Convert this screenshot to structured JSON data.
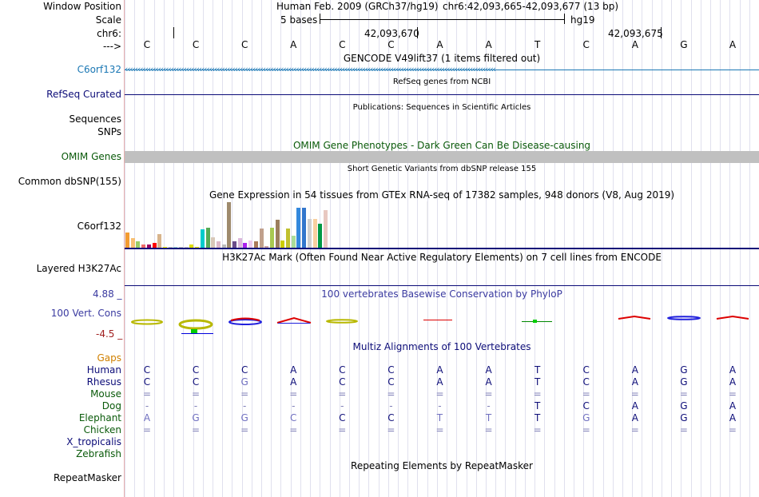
{
  "header": {
    "window_position_label": "Window Position",
    "assembly": "Human Feb. 2009 (GRCh37/hg19)",
    "position": "chr6:42,093,665-42,093,677 (13 bp)",
    "scale_label": "Scale",
    "scale_text": "5 bases",
    "scale_db": "hg19",
    "chrom_label": "chr6:",
    "coord1": "42,093,670",
    "coord2": "42,093,675",
    "strand_label": "--->"
  },
  "bases": [
    "C",
    "C",
    "C",
    "A",
    "C",
    "C",
    "A",
    "A",
    "T",
    "C",
    "A",
    "G",
    "A"
  ],
  "tracks": {
    "gencode_title": "GENCODE V49lift37 (1 items filtered out)",
    "gencode_label": "C6orf132",
    "refseq_title": "RefSeq genes from NCBI",
    "refseq_label": "RefSeq Curated",
    "pubs_title": "Publications: Sequences in Scientific Articles",
    "sequences_label": "Sequences",
    "snps_label": "SNPs",
    "omim_title": "OMIM Gene Phenotypes - Dark Green Can Be Disease-causing",
    "omim_label": "OMIM Genes",
    "dbsnp_title": "Short Genetic Variants from dbSNP release 155",
    "dbsnp_label": "Common dbSNP(155)",
    "gtex_title": "Gene Expression in 54 tissues from GTEx RNA-seq of 17382 samples, 948 donors (V8, Aug 2019)",
    "gtex_label": "C6orf132",
    "h3k27ac_title": "H3K27Ac Mark (Often Found Near Active Regulatory Elements) on 7 cell lines from ENCODE",
    "h3k27ac_label": "Layered H3K27Ac",
    "phylop_title": "100 vertebrates Basewise Conservation by PhyloP",
    "phylop_label": "100 Vert. Cons",
    "phylop_max": "4.88 _",
    "phylop_min": "-4.5 _",
    "multiz_title": "Multiz Alignments of 100 Vertebrates",
    "gaps_label": "Gaps",
    "repeat_title": "Repeating Elements by RepeatMasker",
    "repeat_label": "RepeatMasker"
  },
  "colors": {
    "gencode": "#1a77b4",
    "refseq": "#0c0c78",
    "omim": "#0a5a0a",
    "phylop": "#3a3aa0",
    "phylop_min": "#a02020",
    "gaps": "#d08000",
    "multiz_title": "#0c0c78"
  },
  "gtex_expression": [
    {
      "color": "#f39b31",
      "value": 19
    },
    {
      "color": "#f7bf73",
      "value": 12
    },
    {
      "color": "#99cc66",
      "value": 8
    },
    {
      "color": "#ee6a6a",
      "value": 4
    },
    {
      "color": "#990066",
      "value": 4
    },
    {
      "color": "#ff0000",
      "value": 6
    },
    {
      "color": "#d8b48c",
      "value": 17
    },
    {
      "color": "#ffff00",
      "value": 1
    },
    {
      "color": "#c8c8c8",
      "value": 1
    },
    {
      "color": "#9ad9d9",
      "value": 1
    },
    {
      "color": "#c0c0c0",
      "value": 1
    },
    {
      "color": "#cccccc",
      "value": 1
    },
    {
      "color": "#dddd00",
      "value": 4
    },
    {
      "color": "#f0f000",
      "value": 1
    },
    {
      "color": "#00cccc",
      "value": 23
    },
    {
      "color": "#55aa55",
      "value": 25
    },
    {
      "color": "#d8c8b8",
      "value": 13
    },
    {
      "color": "#dcb8c8",
      "value": 8
    },
    {
      "color": "#bbbbbb",
      "value": 4
    },
    {
      "color": "#9e8a6d",
      "value": 58
    },
    {
      "color": "#6a4c8a",
      "value": 8
    },
    {
      "color": "#dcb8dc",
      "value": 12
    },
    {
      "color": "#aa22ee",
      "value": 6
    },
    {
      "color": "#eecaee",
      "value": 9
    },
    {
      "color": "#aa7a5a",
      "value": 8
    },
    {
      "color": "#c0a08c",
      "value": 24
    },
    {
      "color": "#c8a0a0",
      "value": 2
    },
    {
      "color": "#a8c850",
      "value": 25
    },
    {
      "color": "#9b7d5c",
      "value": 36
    },
    {
      "color": "#cccc00",
      "value": 9
    },
    {
      "color": "#c0c030",
      "value": 24
    },
    {
      "color": "#aadd99",
      "value": 15
    },
    {
      "color": "#3388dd",
      "value": 51
    },
    {
      "color": "#3377cc",
      "value": 51
    },
    {
      "color": "#d0d0d0",
      "value": 37
    },
    {
      "color": "#f8d0a0",
      "value": 37
    },
    {
      "color": "#009944",
      "value": 31
    },
    {
      "color": "#e8c8c0",
      "value": 48
    }
  ],
  "multiz": [
    {
      "species": "Human",
      "color": "#0c0c78",
      "cells": [
        "C",
        "C",
        "C",
        "A",
        "C",
        "C",
        "A",
        "A",
        "T",
        "C",
        "A",
        "G",
        "A"
      ]
    },
    {
      "species": "Rhesus",
      "color": "#0c0c78",
      "cells": [
        "C",
        "C",
        "G",
        "A",
        "C",
        "C",
        "A",
        "A",
        "T",
        "C",
        "A",
        "G",
        "A"
      ]
    },
    {
      "species": "Mouse",
      "color": "#0a5a0a",
      "cells": [
        "=",
        "=",
        "=",
        "=",
        "=",
        "=",
        "=",
        "=",
        "=",
        "=",
        "=",
        "=",
        "="
      ]
    },
    {
      "species": "Dog",
      "color": "#0a5a0a",
      "cells": [
        "-",
        "-",
        "-",
        "-",
        "-",
        "-",
        "-",
        "-",
        "T",
        "C",
        "A",
        "G",
        "A"
      ]
    },
    {
      "species": "Elephant",
      "color": "#0a5a0a",
      "cells": [
        "A",
        "G",
        "G",
        "C",
        "C",
        "C",
        "T",
        "T",
        "T",
        "G",
        "A",
        "G",
        "A"
      ]
    },
    {
      "species": "Chicken",
      "color": "#0a5a0a",
      "cells": [
        "=",
        "=",
        "=",
        "=",
        "=",
        "=",
        "=",
        "=",
        "=",
        "=",
        "=",
        "=",
        "="
      ]
    },
    {
      "species": "X_tropicalis",
      "color": "#0c0c78",
      "cells": []
    },
    {
      "species": "Zebrafish",
      "color": "#0a5a0a",
      "cells": []
    }
  ]
}
